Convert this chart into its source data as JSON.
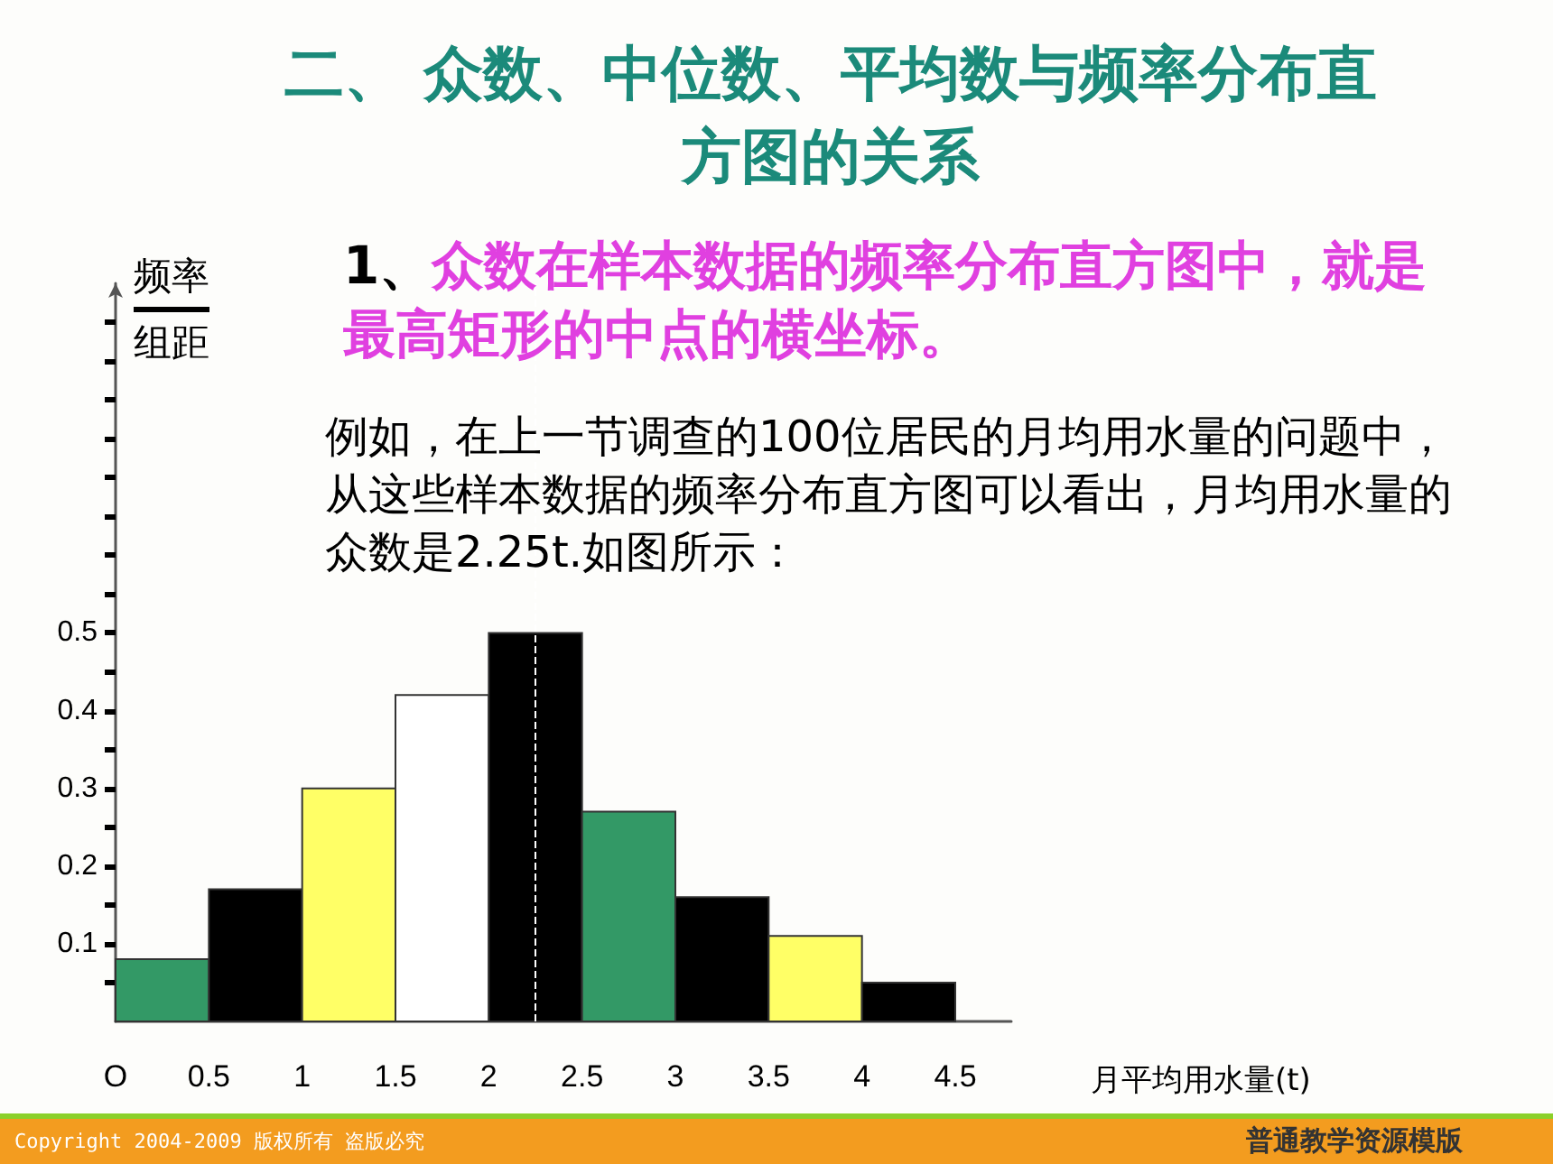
{
  "chart_data": {
    "type": "histogram",
    "title": "二、  众数、中位数、平均数与频率分布直方图的关系",
    "xlabel": "月平均用水量(t)",
    "ylabel": "频率组距",
    "bins": [
      0,
      0.5,
      1,
      1.5,
      2,
      2.5,
      3,
      3.5,
      4,
      4.5
    ],
    "values": [
      0.08,
      0.17,
      0.3,
      0.42,
      0.5,
      0.27,
      0.16,
      0.11,
      0.05
    ],
    "colors": [
      "#339966",
      "#000000",
      "#ffff66",
      "#ffffff",
      "#000000",
      "#339966",
      "#000000",
      "#ffff66",
      "#000000"
    ],
    "xlim": [
      0,
      4.8
    ],
    "ylim": [
      0,
      0.95
    ],
    "xticks": [
      {
        "value": 0,
        "label": "O"
      },
      0.5,
      1,
      1.5,
      2,
      2.5,
      3,
      3.5,
      4,
      4.5
    ],
    "yticks": [
      {
        "value": 0.05,
        "label": null
      },
      0.1,
      {
        "value": 0.15,
        "label": null
      },
      0.2,
      {
        "value": 0.25,
        "label": null
      },
      0.3,
      {
        "value": 0.35,
        "label": null
      },
      0.4,
      {
        "value": 0.45,
        "label": null
      },
      0.5,
      {
        "value": 0.55,
        "label": null
      },
      {
        "value": 0.6,
        "label": null
      },
      {
        "value": 0.65,
        "label": null
      },
      {
        "value": 0.7,
        "label": null
      },
      {
        "value": 0.75,
        "label": null
      },
      {
        "value": 0.8,
        "label": null
      },
      {
        "value": 0.85,
        "label": null
      },
      {
        "value": 0.9,
        "label": null
      }
    ],
    "ref_lines": [
      {
        "axis": "x",
        "value": 2.25,
        "label": null,
        "color": "#ffffff",
        "line_style": "dashed"
      }
    ],
    "grid": false,
    "annotations": [
      "1、众数在样本数据的频率分布直方图中，就是最高矩形的中点的横坐标。",
      "例如，在上一节调查的100位居民的月均用水量的问题中，从这些样本数据的频率分布直方图可以看出，月均用水量的众数是2.25t.如图所示：",
      "Copyright 2004-2009 版权所有 盗版必究",
      "普通教学资源模版"
    ]
  }
}
